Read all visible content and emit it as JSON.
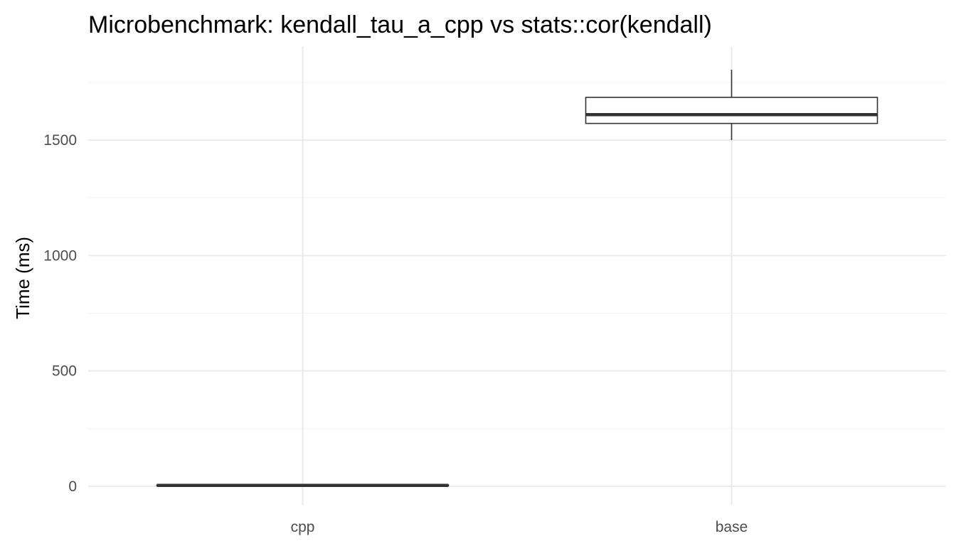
{
  "chart_data": {
    "type": "boxplot",
    "title": "Microbenchmark: kendall_tau_a_cpp vs stats::cor(kendall)",
    "xlabel": "",
    "ylabel": "Time (ms)",
    "categories": [
      "cpp",
      "base"
    ],
    "ylim": [
      -75,
      1810
    ],
    "y_ticks": [
      0,
      500,
      1000,
      1500
    ],
    "y_tick_labels": [
      "0",
      "500",
      "1000",
      "1500"
    ],
    "boxes": [
      {
        "name": "cpp",
        "min": 1,
        "q1": 3,
        "median": 4,
        "q3": 5,
        "max": 6
      },
      {
        "name": "base",
        "min": 1500,
        "q1": 1572,
        "median": 1610,
        "q3": 1685,
        "max": 1805
      }
    ],
    "grid": true,
    "legend": "none",
    "colors": {
      "box_stroke": "#333333",
      "grid_major": "#ebebeb",
      "grid_minor": "#f3f3f3",
      "tick_text": "#4d4d4d"
    }
  }
}
